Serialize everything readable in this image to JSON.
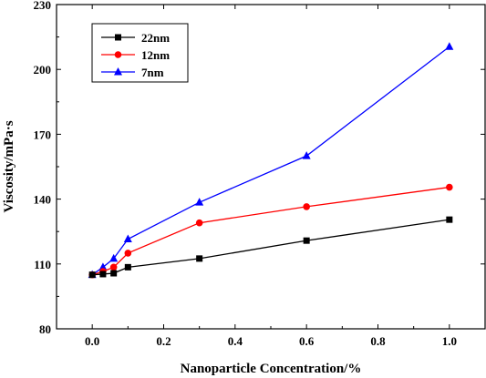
{
  "chart_data": {
    "type": "line",
    "title": "",
    "xlabel": "Nanoparticle Concentration/%",
    "ylabel": "Viscosity/mPa·s",
    "xlim": [
      -0.1,
      1.1
    ],
    "ylim": [
      80,
      230
    ],
    "x_ticks": [
      "0.0",
      "0.2",
      "0.4",
      "0.6",
      "0.8",
      "1.0"
    ],
    "y_ticks": [
      "80",
      "110",
      "140",
      "170",
      "200",
      "230"
    ],
    "x_tick_values": [
      0.0,
      0.2,
      0.4,
      0.6,
      0.8,
      1.0
    ],
    "y_tick_values": [
      80,
      110,
      140,
      170,
      200,
      230
    ],
    "grid": false,
    "legend_position": "top-left",
    "series": [
      {
        "name": "22nm",
        "color": "#000000",
        "marker": "square",
        "x": [
          0.0,
          0.03,
          0.06,
          0.1,
          0.3,
          0.6,
          1.0
        ],
        "y": [
          105.0,
          105.3,
          105.7,
          108.5,
          112.5,
          120.8,
          130.5
        ]
      },
      {
        "name": "12nm",
        "color": "#ff0000",
        "marker": "circle",
        "x": [
          0.0,
          0.03,
          0.06,
          0.1,
          0.3,
          0.6,
          1.0
        ],
        "y": [
          105.0,
          106.5,
          108.5,
          115.0,
          129.0,
          136.5,
          145.5
        ]
      },
      {
        "name": "7nm",
        "color": "#0000ff",
        "marker": "triangle",
        "x": [
          0.0,
          0.03,
          0.06,
          0.1,
          0.3,
          0.6,
          1.0
        ],
        "y": [
          105.0,
          108.5,
          112.5,
          121.5,
          138.5,
          160.0,
          210.5
        ]
      }
    ]
  }
}
